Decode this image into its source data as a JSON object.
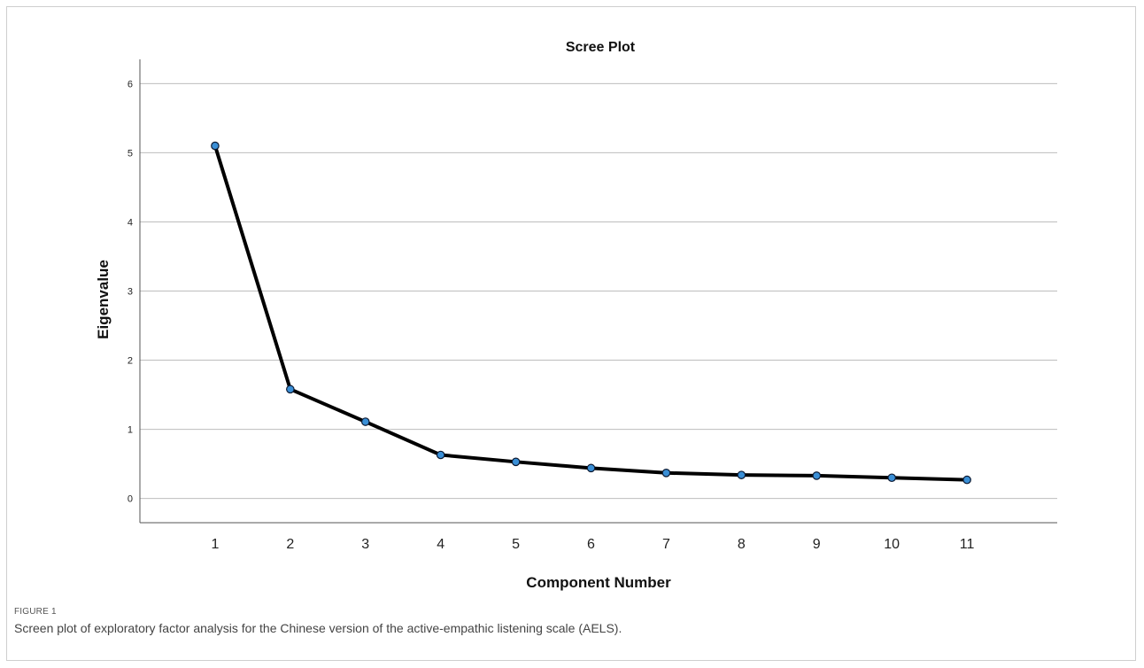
{
  "figure": {
    "label": "FIGURE 1",
    "caption": "Screen plot of exploratory factor analysis for the Chinese version of the active-empathic listening scale (AELS)."
  },
  "chart_data": {
    "type": "line",
    "title": "Scree Plot",
    "xlabel": "Component Number",
    "ylabel": "Eigenvalue",
    "x": [
      1,
      2,
      3,
      4,
      5,
      6,
      7,
      8,
      9,
      10,
      11
    ],
    "x_tick_labels": [
      "1",
      "2",
      "3",
      "4",
      "5",
      "6",
      "7",
      "8",
      "9",
      "10",
      "11"
    ],
    "y_ticks": [
      0,
      1,
      2,
      3,
      4,
      5,
      6
    ],
    "y_tick_labels": [
      "0",
      "1",
      "2",
      "3",
      "4",
      "5",
      "6"
    ],
    "ylim": [
      -0.35,
      6.35
    ],
    "series": [
      {
        "values": [
          5.1,
          1.58,
          1.11,
          0.63,
          0.53,
          0.44,
          0.37,
          0.34,
          0.33,
          0.3,
          0.27
        ]
      }
    ],
    "grid": true,
    "colors": {
      "line": "#000000",
      "marker_fill": "#3a8fd6",
      "marker_edge": "#0c1a33",
      "grid": "#bdbdbd"
    }
  }
}
